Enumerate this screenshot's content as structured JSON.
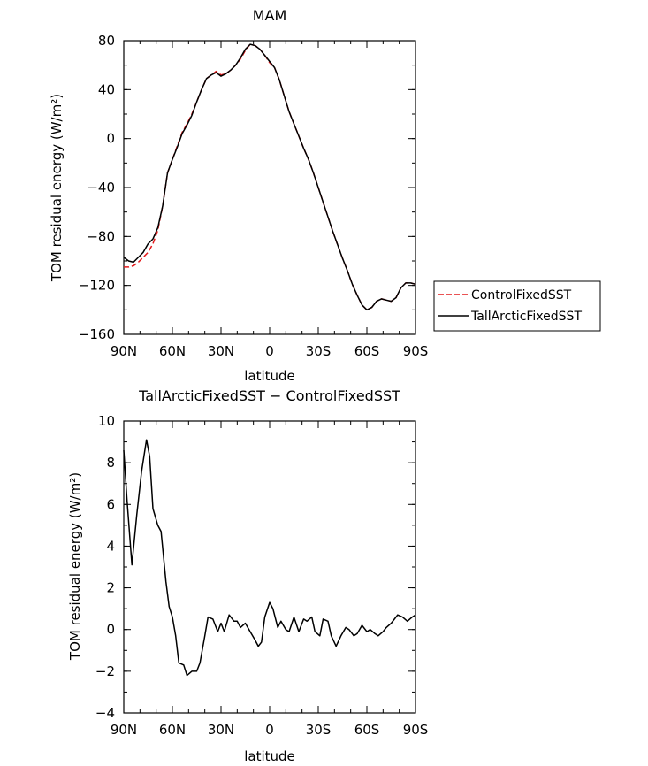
{
  "chart_data": [
    {
      "type": "line",
      "title": "MAM",
      "xlabel": "latitude",
      "ylabel": "TOM residual energy (W/m²)",
      "xlim": [
        90,
        -90
      ],
      "ylim": [
        -160,
        80
      ],
      "xticks": [
        90,
        60,
        30,
        0,
        -30,
        -60,
        -90
      ],
      "xtick_labels": [
        "90N",
        "60N",
        "30N",
        "0",
        "30S",
        "60S",
        "90S"
      ],
      "yticks": [
        80,
        40,
        0,
        -40,
        -80,
        -120,
        -160
      ],
      "ytick_labels": [
        "80",
        "40",
        "0",
        "−40",
        "−80",
        "−120",
        "−160"
      ],
      "legend": {
        "position": "right",
        "entries": [
          "ControlFixedSST",
          "TallArcticFixedSST"
        ]
      },
      "x": [
        90,
        87,
        84,
        81,
        78,
        75,
        72,
        69,
        66,
        63,
        60,
        57,
        54,
        51,
        48,
        45,
        42,
        39,
        36,
        33,
        30,
        27,
        24,
        21,
        18,
        15,
        12,
        9,
        6,
        3,
        0,
        -3,
        -6,
        -9,
        -12,
        -15,
        -18,
        -21,
        -24,
        -27,
        -30,
        -33,
        -36,
        -39,
        -42,
        -45,
        -48,
        -51,
        -54,
        -57,
        -60,
        -63,
        -66,
        -69,
        -72,
        -75,
        -78,
        -81,
        -84,
        -87,
        -90
      ],
      "series": [
        {
          "name": "ControlFixedSST",
          "color": "#e41a1c",
          "dash": "dashed",
          "values": [
            -105,
            -105,
            -104,
            -101,
            -97,
            -93,
            -86,
            -75,
            -55,
            -28,
            -17,
            -6,
            5,
            12,
            20,
            30,
            40,
            49,
            52,
            55,
            52,
            53,
            56,
            60,
            65,
            72,
            77,
            76,
            73,
            68,
            62,
            58,
            48,
            35,
            22,
            12,
            2,
            -8,
            -17,
            -28,
            -40,
            -52,
            -64,
            -76,
            -87,
            -98,
            -108,
            -119,
            -128,
            -136,
            -140,
            -138,
            -133,
            -131,
            -132,
            -133,
            -130,
            -122,
            -118,
            -118,
            -119
          ]
        },
        {
          "name": "TallArcticFixedSST",
          "color": "#000000",
          "dash": "solid",
          "values": [
            -97,
            -100,
            -101,
            -97,
            -93,
            -86,
            -82,
            -73,
            -55,
            -28,
            -17,
            -7,
            4,
            11,
            19,
            30,
            40,
            49,
            52,
            54,
            51,
            53,
            56,
            60,
            66,
            73,
            77,
            76,
            73,
            68,
            63,
            58,
            48,
            35,
            22,
            12,
            2,
            -8,
            -17,
            -28,
            -40,
            -52,
            -64,
            -76,
            -87,
            -98,
            -108,
            -119,
            -128,
            -136,
            -140,
            -138,
            -133,
            -131,
            -132,
            -133,
            -130,
            -122,
            -118,
            -118,
            -119
          ]
        }
      ]
    },
    {
      "type": "line",
      "title": "TallArcticFixedSST − ControlFixedSST",
      "xlabel": "latitude",
      "ylabel": "TOM residual energy (W/m²)",
      "xlim": [
        90,
        -90
      ],
      "ylim": [
        -4,
        10
      ],
      "xticks": [
        90,
        60,
        30,
        0,
        -30,
        -60,
        -90
      ],
      "xtick_labels": [
        "90N",
        "60N",
        "30N",
        "0",
        "30S",
        "60S",
        "90S"
      ],
      "yticks": [
        10,
        8,
        6,
        4,
        2,
        0,
        -2,
        -4
      ],
      "ytick_labels": [
        "10",
        "8",
        "6",
        "4",
        "2",
        "0",
        "−2",
        "−4"
      ],
      "x": [
        90,
        88,
        85,
        82,
        79,
        76,
        74,
        72,
        69,
        67,
        64,
        62,
        60,
        58,
        56,
        53,
        51,
        48,
        45,
        43,
        40,
        38,
        35,
        32,
        30,
        28,
        25,
        22,
        20,
        18,
        15,
        12,
        9,
        7,
        5,
        3,
        0,
        -2,
        -5,
        -7,
        -10,
        -12,
        -15,
        -18,
        -21,
        -23,
        -26,
        -28,
        -31,
        -33,
        -36,
        -38,
        -41,
        -44,
        -47,
        -49,
        -52,
        -54,
        -57,
        -60,
        -62,
        -65,
        -67,
        -70,
        -72,
        -75,
        -77,
        -79,
        -82,
        -85,
        -88,
        -90
      ],
      "series": [
        {
          "name": "TallArcticFixedSST − ControlFixedSST",
          "color": "#000000",
          "dash": "solid",
          "values": [
            8.6,
            6.2,
            3.1,
            5.5,
            7.6,
            9.1,
            8.3,
            5.8,
            5.0,
            4.7,
            2.3,
            1.1,
            0.6,
            -0.3,
            -1.6,
            -1.7,
            -2.2,
            -2.0,
            -2.0,
            -1.6,
            -0.3,
            0.6,
            0.5,
            -0.1,
            0.3,
            -0.1,
            0.7,
            0.4,
            0.4,
            0.1,
            0.3,
            -0.1,
            -0.5,
            -0.8,
            -0.6,
            0.6,
            1.3,
            1.0,
            0.1,
            0.4,
            0.0,
            -0.1,
            0.6,
            -0.1,
            0.5,
            0.4,
            0.6,
            -0.1,
            -0.3,
            0.5,
            0.4,
            -0.3,
            -0.8,
            -0.3,
            0.1,
            0.0,
            -0.3,
            -0.2,
            0.2,
            -0.1,
            0.0,
            -0.2,
            -0.3,
            -0.1,
            0.1,
            0.3,
            0.5,
            0.7,
            0.6,
            0.4,
            0.6,
            0.7
          ]
        }
      ]
    }
  ]
}
